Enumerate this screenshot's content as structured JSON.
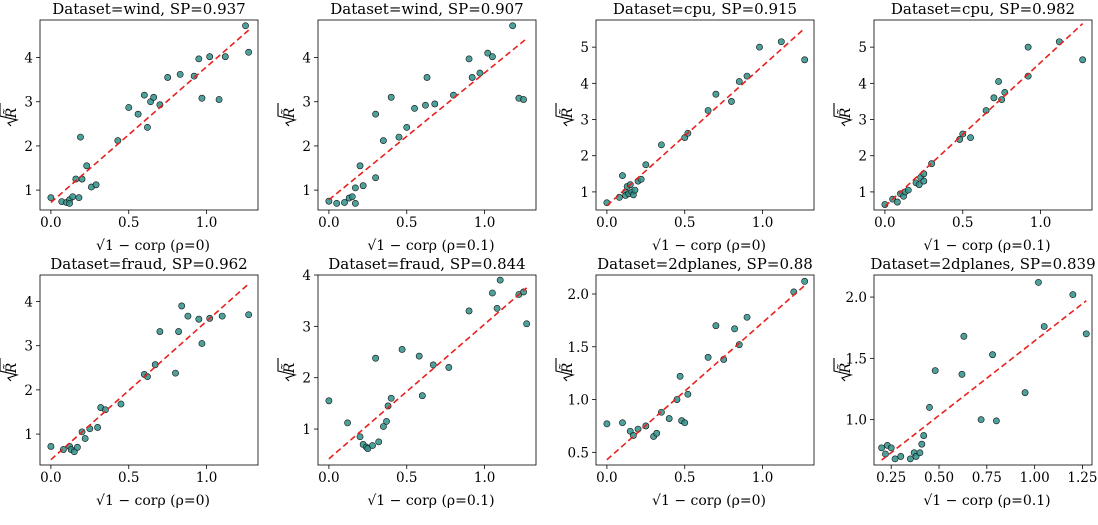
{
  "chart_data": [
    {
      "type": "scatter",
      "title": "Dataset=wind, SP=0.937",
      "xlabel": "√1 − corρ (ρ=0)",
      "ylabel": "√R̃",
      "xlim": [
        -0.07,
        1.33
      ],
      "ylim": [
        0.55,
        4.85
      ],
      "xticks": [
        0.0,
        0.5,
        1.0
      ],
      "xtick_labels": [
        "0.0",
        "0.5",
        "1.0"
      ],
      "yticks": [
        1,
        2,
        3,
        4
      ],
      "ytick_labels": [
        "1",
        "2",
        "3",
        "4"
      ],
      "fit_line": {
        "x": [
          0.0,
          1.27
        ],
        "y": [
          0.72,
          4.62
        ],
        "style": "dashed",
        "color": "#e8211c"
      },
      "points": [
        [
          0.0,
          0.83
        ],
        [
          0.07,
          0.74
        ],
        [
          0.1,
          0.72
        ],
        [
          0.12,
          0.78
        ],
        [
          0.12,
          0.7
        ],
        [
          0.14,
          0.85
        ],
        [
          0.16,
          1.25
        ],
        [
          0.18,
          0.83
        ],
        [
          0.2,
          1.25
        ],
        [
          0.19,
          2.2
        ],
        [
          0.23,
          1.55
        ],
        [
          0.26,
          1.07
        ],
        [
          0.29,
          1.12
        ],
        [
          0.43,
          2.12
        ],
        [
          0.5,
          2.87
        ],
        [
          0.56,
          2.72
        ],
        [
          0.6,
          3.15
        ],
        [
          0.62,
          2.42
        ],
        [
          0.64,
          3.0
        ],
        [
          0.66,
          3.1
        ],
        [
          0.7,
          2.93
        ],
        [
          0.75,
          3.55
        ],
        [
          0.83,
          3.62
        ],
        [
          0.92,
          3.58
        ],
        [
          0.95,
          3.97
        ],
        [
          0.97,
          3.08
        ],
        [
          1.02,
          4.02
        ],
        [
          1.08,
          3.05
        ],
        [
          1.12,
          4.02
        ],
        [
          1.25,
          4.72
        ],
        [
          1.27,
          4.12
        ]
      ]
    },
    {
      "type": "scatter",
      "title": "Dataset=wind, SP=0.907",
      "xlabel": "√1 − corρ (ρ=0.1)",
      "ylabel": "√R̃",
      "xlim": [
        -0.07,
        1.33
      ],
      "ylim": [
        0.55,
        4.85
      ],
      "xticks": [
        0.0,
        0.5,
        1.0
      ],
      "xtick_labels": [
        "0.0",
        "0.5",
        "1.0"
      ],
      "yticks": [
        1,
        2,
        3,
        4
      ],
      "ytick_labels": [
        "1",
        "2",
        "3",
        "4"
      ],
      "fit_line": {
        "x": [
          0.0,
          1.27
        ],
        "y": [
          0.78,
          4.43
        ],
        "style": "dashed",
        "color": "#e8211c"
      },
      "points": [
        [
          0.0,
          0.75
        ],
        [
          0.05,
          0.7
        ],
        [
          0.1,
          0.72
        ],
        [
          0.13,
          0.82
        ],
        [
          0.15,
          0.85
        ],
        [
          0.17,
          0.7
        ],
        [
          0.17,
          1.05
        ],
        [
          0.2,
          1.55
        ],
        [
          0.22,
          1.1
        ],
        [
          0.3,
          1.28
        ],
        [
          0.3,
          2.72
        ],
        [
          0.35,
          2.12
        ],
        [
          0.4,
          3.1
        ],
        [
          0.45,
          2.2
        ],
        [
          0.5,
          2.42
        ],
        [
          0.55,
          2.85
        ],
        [
          0.62,
          2.92
        ],
        [
          0.63,
          3.55
        ],
        [
          0.68,
          2.95
        ],
        [
          0.8,
          3.15
        ],
        [
          0.9,
          3.97
        ],
        [
          0.92,
          3.55
        ],
        [
          0.97,
          3.65
        ],
        [
          1.02,
          4.1
        ],
        [
          1.05,
          4.02
        ],
        [
          1.18,
          4.72
        ],
        [
          1.22,
          3.08
        ],
        [
          1.25,
          3.05
        ]
      ]
    },
    {
      "type": "scatter",
      "title": "Dataset=cpu, SP=0.915",
      "xlabel": "√1 − corρ (ρ=0)",
      "ylabel": "√R̃",
      "xlim": [
        -0.07,
        1.33
      ],
      "ylim": [
        0.5,
        5.75
      ],
      "xticks": [
        0.0,
        0.5,
        1.0
      ],
      "xtick_labels": [
        "0.0",
        "0.5",
        "1.0"
      ],
      "yticks": [
        1,
        2,
        3,
        4,
        5
      ],
      "ytick_labels": [
        "1",
        "2",
        "3",
        "4",
        "5"
      ],
      "fit_line": {
        "x": [
          0.0,
          1.27
        ],
        "y": [
          0.62,
          5.52
        ],
        "style": "dashed",
        "color": "#e8211c"
      },
      "points": [
        [
          0.0,
          0.7
        ],
        [
          0.08,
          0.85
        ],
        [
          0.1,
          1.45
        ],
        [
          0.12,
          1.0
        ],
        [
          0.12,
          0.9
        ],
        [
          0.13,
          1.15
        ],
        [
          0.14,
          0.95
        ],
        [
          0.15,
          1.2
        ],
        [
          0.16,
          1.0
        ],
        [
          0.17,
          0.92
        ],
        [
          0.18,
          1.05
        ],
        [
          0.2,
          1.3
        ],
        [
          0.22,
          1.35
        ],
        [
          0.25,
          1.75
        ],
        [
          0.35,
          2.3
        ],
        [
          0.5,
          2.5
        ],
        [
          0.52,
          2.62
        ],
        [
          0.65,
          3.25
        ],
        [
          0.7,
          3.7
        ],
        [
          0.8,
          3.5
        ],
        [
          0.85,
          4.05
        ],
        [
          0.9,
          4.2
        ],
        [
          0.98,
          5.0
        ],
        [
          1.12,
          5.15
        ],
        [
          1.27,
          4.65
        ]
      ]
    },
    {
      "type": "scatter",
      "title": "Dataset=cpu, SP=0.982",
      "xlabel": "√1 − corρ (ρ=0.1)",
      "ylabel": "√R̃",
      "xlim": [
        -0.07,
        1.33
      ],
      "ylim": [
        0.5,
        5.75
      ],
      "xticks": [
        0.0,
        0.5,
        1.0
      ],
      "xtick_labels": [
        "0.0",
        "0.5",
        "1.0"
      ],
      "yticks": [
        1,
        2,
        3,
        4,
        5
      ],
      "ytick_labels": [
        "1",
        "2",
        "3",
        "4",
        "5"
      ],
      "fit_line": {
        "x": [
          0.0,
          1.27
        ],
        "y": [
          0.6,
          5.65
        ],
        "style": "dashed",
        "color": "#e8211c"
      },
      "points": [
        [
          0.0,
          0.65
        ],
        [
          0.05,
          0.8
        ],
        [
          0.08,
          0.72
        ],
        [
          0.1,
          0.95
        ],
        [
          0.12,
          0.88
        ],
        [
          0.13,
          1.0
        ],
        [
          0.15,
          1.05
        ],
        [
          0.2,
          1.25
        ],
        [
          0.22,
          1.2
        ],
        [
          0.23,
          1.4
        ],
        [
          0.25,
          1.5
        ],
        [
          0.25,
          1.3
        ],
        [
          0.3,
          1.78
        ],
        [
          0.48,
          2.45
        ],
        [
          0.5,
          2.6
        ],
        [
          0.55,
          2.5
        ],
        [
          0.65,
          3.25
        ],
        [
          0.7,
          3.6
        ],
        [
          0.73,
          4.05
        ],
        [
          0.75,
          3.55
        ],
        [
          0.77,
          3.75
        ],
        [
          0.92,
          4.2
        ],
        [
          0.92,
          5.0
        ],
        [
          1.12,
          5.15
        ],
        [
          1.27,
          4.65
        ]
      ]
    },
    {
      "type": "scatter",
      "title": "Dataset=fraud, SP=0.962",
      "xlabel": "√1 − corρ (ρ=0)",
      "ylabel": "√R̃",
      "xlim": [
        -0.07,
        1.33
      ],
      "ylim": [
        0.3,
        4.6
      ],
      "xticks": [
        0.0,
        0.5,
        1.0
      ],
      "xtick_labels": [
        "0.0",
        "0.5",
        "1.0"
      ],
      "yticks": [
        1,
        2,
        3,
        4
      ],
      "ytick_labels": [
        "1",
        "2",
        "3",
        "4"
      ],
      "fit_line": {
        "x": [
          0.0,
          1.27
        ],
        "y": [
          0.42,
          4.4
        ],
        "style": "dashed",
        "color": "#e8211c"
      },
      "points": [
        [
          0.0,
          0.72
        ],
        [
          0.08,
          0.65
        ],
        [
          0.12,
          0.72
        ],
        [
          0.13,
          0.65
        ],
        [
          0.15,
          0.6
        ],
        [
          0.17,
          0.7
        ],
        [
          0.2,
          1.05
        ],
        [
          0.22,
          0.9
        ],
        [
          0.25,
          1.12
        ],
        [
          0.3,
          1.15
        ],
        [
          0.32,
          1.6
        ],
        [
          0.35,
          1.55
        ],
        [
          0.45,
          1.68
        ],
        [
          0.6,
          2.35
        ],
        [
          0.62,
          2.3
        ],
        [
          0.67,
          2.57
        ],
        [
          0.7,
          3.32
        ],
        [
          0.8,
          2.38
        ],
        [
          0.82,
          3.32
        ],
        [
          0.84,
          3.9
        ],
        [
          0.88,
          3.67
        ],
        [
          0.95,
          3.6
        ],
        [
          0.97,
          3.05
        ],
        [
          1.02,
          3.62
        ],
        [
          1.1,
          3.67
        ],
        [
          1.27,
          3.7
        ]
      ]
    },
    {
      "type": "scatter",
      "title": "Dataset=fraud, SP=0.844",
      "xlabel": "√1 − corρ (ρ=0.1)",
      "ylabel": "√R̃",
      "xlim": [
        -0.07,
        1.33
      ],
      "ylim": [
        0.3,
        4.0
      ],
      "xticks": [
        0.0,
        0.5,
        1.0
      ],
      "xtick_labels": [
        "0.0",
        "0.5",
        "1.0"
      ],
      "yticks": [
        1,
        2,
        3,
        4
      ],
      "ytick_labels": [
        "1",
        "2",
        "3",
        "4"
      ],
      "fit_line": {
        "x": [
          0.0,
          1.27
        ],
        "y": [
          0.42,
          3.75
        ],
        "style": "dashed",
        "color": "#e8211c"
      },
      "points": [
        [
          0.0,
          1.55
        ],
        [
          0.12,
          1.12
        ],
        [
          0.2,
          0.85
        ],
        [
          0.22,
          0.7
        ],
        [
          0.24,
          0.65
        ],
        [
          0.25,
          0.62
        ],
        [
          0.28,
          0.68
        ],
        [
          0.3,
          2.38
        ],
        [
          0.32,
          0.75
        ],
        [
          0.35,
          1.05
        ],
        [
          0.37,
          1.15
        ],
        [
          0.38,
          1.45
        ],
        [
          0.4,
          1.6
        ],
        [
          0.47,
          2.55
        ],
        [
          0.58,
          2.42
        ],
        [
          0.6,
          1.65
        ],
        [
          0.67,
          2.25
        ],
        [
          0.77,
          2.2
        ],
        [
          0.9,
          3.3
        ],
        [
          1.05,
          3.65
        ],
        [
          1.08,
          3.35
        ],
        [
          1.1,
          3.9
        ],
        [
          1.22,
          3.62
        ],
        [
          1.25,
          3.67
        ],
        [
          1.27,
          3.05
        ]
      ]
    },
    {
      "type": "scatter",
      "title": "Dataset=2dplanes, SP=0.88",
      "xlabel": "√1 − corρ (ρ=0)",
      "ylabel": "√R̃",
      "xlim": [
        -0.07,
        1.33
      ],
      "ylim": [
        0.38,
        2.18
      ],
      "xticks": [
        0.0,
        0.5,
        1.0
      ],
      "xtick_labels": [
        "0.0",
        "0.5",
        "1.0"
      ],
      "yticks": [
        0.5,
        1.0,
        1.5,
        2.0
      ],
      "ytick_labels": [
        "0.5",
        "1.0",
        "1.5",
        "2.0"
      ],
      "fit_line": {
        "x": [
          0.0,
          1.27
        ],
        "y": [
          0.43,
          2.08
        ],
        "style": "dashed",
        "color": "#e8211c"
      },
      "points": [
        [
          0.0,
          0.77
        ],
        [
          0.1,
          0.78
        ],
        [
          0.15,
          0.7
        ],
        [
          0.17,
          0.66
        ],
        [
          0.2,
          0.72
        ],
        [
          0.25,
          0.75
        ],
        [
          0.3,
          0.65
        ],
        [
          0.32,
          0.68
        ],
        [
          0.35,
          0.88
        ],
        [
          0.4,
          0.82
        ],
        [
          0.45,
          1.0
        ],
        [
          0.47,
          1.22
        ],
        [
          0.48,
          0.8
        ],
        [
          0.5,
          0.78
        ],
        [
          0.52,
          1.05
        ],
        [
          0.65,
          1.4
        ],
        [
          0.7,
          1.7
        ],
        [
          0.75,
          1.38
        ],
        [
          0.82,
          1.67
        ],
        [
          0.85,
          1.52
        ],
        [
          0.9,
          1.78
        ],
        [
          1.2,
          2.02
        ],
        [
          1.27,
          2.12
        ]
      ]
    },
    {
      "type": "scatter",
      "title": "Dataset=2dplanes, SP=0.839",
      "xlabel": "√1 − corρ (ρ=0.1)",
      "ylabel": "√R̃",
      "xlim": [
        0.16,
        1.3
      ],
      "ylim": [
        0.63,
        2.18
      ],
      "xticks": [
        0.25,
        0.5,
        0.75,
        1.0,
        1.25
      ],
      "xtick_labels": [
        "0.25",
        "0.50",
        "0.75",
        "1.00",
        "1.25"
      ],
      "yticks": [
        1.0,
        1.5,
        2.0
      ],
      "ytick_labels": [
        "1.0",
        "1.5",
        "2.0"
      ],
      "fit_line": {
        "x": [
          0.2,
          1.27
        ],
        "y": [
          0.67,
          1.97
        ],
        "style": "dashed",
        "color": "#e8211c"
      },
      "points": [
        [
          0.2,
          0.77
        ],
        [
          0.22,
          0.72
        ],
        [
          0.23,
          0.79
        ],
        [
          0.25,
          0.77
        ],
        [
          0.27,
          0.68
        ],
        [
          0.3,
          0.7
        ],
        [
          0.35,
          0.68
        ],
        [
          0.37,
          0.73
        ],
        [
          0.38,
          0.7
        ],
        [
          0.4,
          0.73
        ],
        [
          0.41,
          0.8
        ],
        [
          0.42,
          0.87
        ],
        [
          0.45,
          1.1
        ],
        [
          0.48,
          1.4
        ],
        [
          0.62,
          1.37
        ],
        [
          0.63,
          1.68
        ],
        [
          0.72,
          1.0
        ],
        [
          0.78,
          1.53
        ],
        [
          0.8,
          0.99
        ],
        [
          0.95,
          1.22
        ],
        [
          1.02,
          2.12
        ],
        [
          1.05,
          1.76
        ],
        [
          1.2,
          2.02
        ],
        [
          1.27,
          1.7
        ]
      ]
    }
  ]
}
